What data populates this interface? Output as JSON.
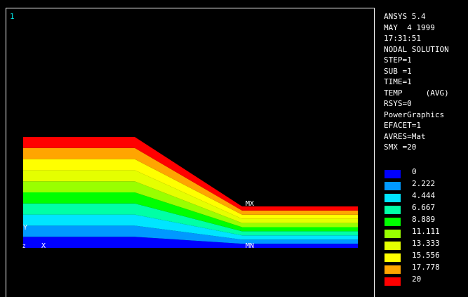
{
  "window": {
    "number": "1"
  },
  "info_lines": [
    "ANSYS 5.4",
    "MAY  4 1999",
    "17:31:51",
    "NODAL SOLUTION",
    "STEP=1",
    "SUB =1",
    "TIME=1",
    "TEMP     (AVG)",
    "RSYS=0",
    "PowerGraphics",
    "EFACET=1",
    "AVRES=Mat",
    "SMX =20"
  ],
  "legend": {
    "values": [
      "0",
      "2.222",
      "4.444",
      "6.667",
      "8.889",
      "11.111",
      "13.333",
      "15.556",
      "17.778",
      "20"
    ],
    "colors": [
      "#0000ff",
      "#0099ff",
      "#00e5ff",
      "#00ffa6",
      "#00ff00",
      "#99ff00",
      "#e5ff00",
      "#ffff00",
      "#ffa500",
      "#ff0000"
    ]
  },
  "plot": {
    "band_colors": [
      "#0000ff",
      "#0099ff",
      "#00e5ff",
      "#00ffa6",
      "#00ff00",
      "#99ff00",
      "#e5ff00",
      "#ffff00",
      "#ffa500",
      "#ff0000"
    ],
    "labels": {
      "mx": "MX",
      "mn": "MN",
      "axis_y": "Y",
      "axis_x": "X",
      "axis_z": "Z"
    }
  }
}
